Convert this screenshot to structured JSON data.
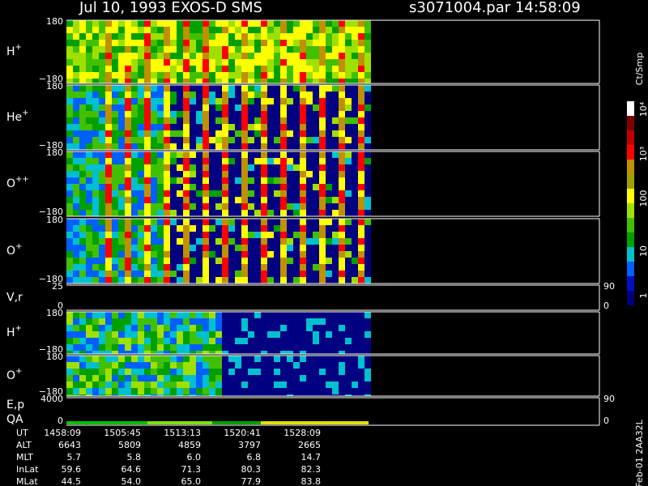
{
  "header": {
    "title": "Jul 10, 1993   EXOS-D SMS",
    "file": "s3071004.par  14:58:09"
  },
  "panels": [
    {
      "label": "H",
      "charge": "+",
      "ticks": [
        "180",
        "−180"
      ]
    },
    {
      "label": "He",
      "charge": "+",
      "ticks": [
        "180",
        "−180"
      ]
    },
    {
      "label": "O",
      "charge": "++",
      "ticks": [
        "180",
        "−180"
      ]
    },
    {
      "label": "O",
      "charge": "+",
      "ticks": [
        "180",
        "−180"
      ]
    },
    {
      "label": "V,r",
      "ticks": [
        "25",
        "0"
      ],
      "right_ticks": [
        "90",
        "0"
      ]
    },
    {
      "label": "H",
      "charge": "+",
      "ticks": [
        "180",
        "−180"
      ]
    },
    {
      "label": "O",
      "charge": "+",
      "ticks": [
        "180",
        "−180"
      ]
    },
    {
      "label": "E,p",
      "label2": "QA",
      "ticks": [
        "4000",
        "0"
      ],
      "right_ticks": [
        "90",
        "0"
      ]
    }
  ],
  "colorbar": {
    "title": "Ct/Smp",
    "ticks": [
      "10⁴",
      "10³",
      "100",
      "10",
      "1"
    ]
  },
  "ephemeris": {
    "rows": [
      {
        "name": "UT",
        "values": [
          "1458:09",
          "1505:45",
          "1513:13",
          "1520:41",
          "1528:09"
        ]
      },
      {
        "name": "ALT",
        "values": [
          "6643",
          "5809",
          "4859",
          "3797",
          "2665"
        ]
      },
      {
        "name": "MLT",
        "values": [
          "5.7",
          "5.8",
          "6.0",
          "6.8",
          "14.7"
        ]
      },
      {
        "name": "InLat",
        "values": [
          "59.6",
          "64.6",
          "71.3",
          "80.3",
          "82.3"
        ]
      },
      {
        "name": "MLat",
        "values": [
          "44.5",
          "54.0",
          "65.0",
          "77.9",
          "83.8"
        ]
      }
    ]
  },
  "footer": "Feb-01 2AA32L"
}
